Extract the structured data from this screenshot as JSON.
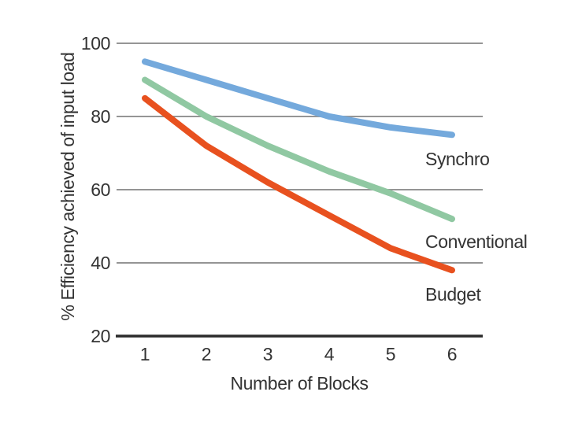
{
  "chart_data": {
    "type": "line",
    "x": [
      1,
      2,
      3,
      4,
      5,
      6
    ],
    "x_ticks": [
      "1",
      "2",
      "3",
      "4",
      "5",
      "6"
    ],
    "y_ticks": [
      "100",
      "80",
      "60",
      "40",
      "20"
    ],
    "ylim": [
      20,
      100
    ],
    "xlabel": "Number of Blocks",
    "ylabel": "% Efficiency achieved of input load",
    "grid": "horizontal-gridlines-at-y-ticks",
    "legend_position": "inline-labels-right-of-lines",
    "series": [
      {
        "name": "Synchro",
        "color": "#74a9dc",
        "values": [
          95,
          90,
          85,
          80,
          77,
          75
        ]
      },
      {
        "name": "Conventional",
        "color": "#90c8a2",
        "values": [
          90,
          80,
          72,
          65,
          59,
          52
        ]
      },
      {
        "name": "Budget",
        "color": "#e8511f",
        "values": [
          85,
          72,
          62,
          53,
          44,
          38
        ]
      }
    ]
  },
  "colors": {
    "background": "#ffffff",
    "grid": "#959595",
    "axis": "#2b2b2b",
    "text": "#333333"
  }
}
